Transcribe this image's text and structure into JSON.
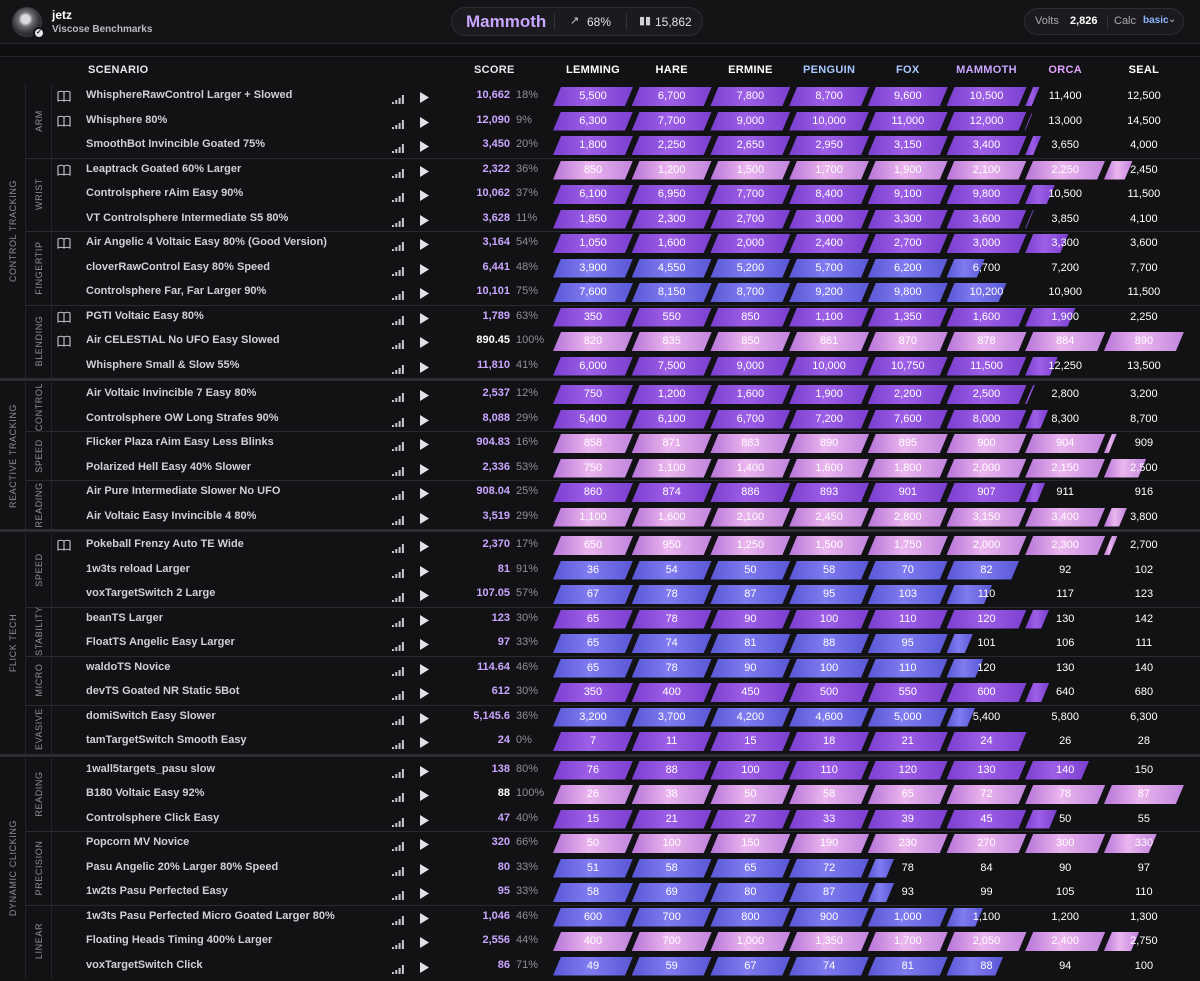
{
  "header": {
    "user_name": "jetz",
    "benchmark_name": "Viscose Benchmarks",
    "rank": {
      "name": "Mammoth",
      "percent": "68%",
      "count": "15,862",
      "trend_icon": "trending-up-icon",
      "count_icon": "bar-chart-icon"
    },
    "volts_label": "Volts",
    "volts_value": "2,826",
    "calc_label": "Calc",
    "calc_value": "basic"
  },
  "columns": {
    "scenario": "SCENARIO",
    "score": "SCORE",
    "ranks": [
      {
        "name": "LEMMING",
        "color": "#ffffff"
      },
      {
        "name": "HARE",
        "color": "#ffffff"
      },
      {
        "name": "ERMINE",
        "color": "#ffffff"
      },
      {
        "name": "PENGUIN",
        "color": "#a9c8ff"
      },
      {
        "name": "FOX",
        "color": "#a9c8ff"
      },
      {
        "name": "MAMMOTH",
        "color": "#c9a6ff"
      },
      {
        "name": "ORCA",
        "color": "#e0a3ff"
      },
      {
        "name": "SEAL",
        "color": "#ffffff"
      }
    ]
  },
  "colors": {
    "purple": "#9b5ce0",
    "violet": "#7c68e6",
    "pink": "#dba2e4",
    "score_purple": "#c9a6ff"
  },
  "categories": [
    {
      "name": "CONTROL TRACKING",
      "subcategories": [
        {
          "name": "ARM",
          "scenarios": [
            {
              "name": "WhisphereRawControl Larger + Slowed",
              "score": "10,662",
              "pct": "18%",
              "progress": 0.18,
              "color": "purple",
              "book": true,
              "thresholds": [
                "5,500",
                "6,700",
                "7,800",
                "8,700",
                "9,600",
                "10,500",
                "11,400",
                "12,500"
              ]
            },
            {
              "name": "Whisphere 80%",
              "score": "12,090",
              "pct": "9%",
              "progress": 0.09,
              "color": "purple",
              "book": true,
              "thresholds": [
                "6,300",
                "7,700",
                "9,000",
                "10,000",
                "11,000",
                "12,000",
                "13,000",
                "14,500"
              ]
            },
            {
              "name": "SmoothBot Invincible Goated 75%",
              "score": "3,450",
              "pct": "20%",
              "progress": 0.2,
              "color": "purple",
              "book": false,
              "thresholds": [
                "1,800",
                "2,250",
                "2,650",
                "2,950",
                "3,150",
                "3,400",
                "3,650",
                "4,000"
              ]
            }
          ]
        },
        {
          "name": "WRIST",
          "scenarios": [
            {
              "name": "Leaptrack Goated 60% Larger",
              "score": "2,322",
              "pct": "36%",
              "progress": 1.36,
              "color": "pink",
              "book": true,
              "thresholds": [
                "850",
                "1,200",
                "1,500",
                "1,700",
                "1,900",
                "2,100",
                "2,250",
                "2,450"
              ]
            },
            {
              "name": "Controlsphere rAim Easy 90%",
              "score": "10,062",
              "pct": "37%",
              "progress": 0.37,
              "color": "purple",
              "book": false,
              "thresholds": [
                "6,100",
                "6,950",
                "7,700",
                "8,400",
                "9,100",
                "9,800",
                "10,500",
                "11,500"
              ]
            },
            {
              "name": "VT Controlsphere Intermediate S5 80%",
              "score": "3,628",
              "pct": "11%",
              "progress": 0.11,
              "color": "purple",
              "book": false,
              "thresholds": [
                "1,850",
                "2,300",
                "2,700",
                "3,000",
                "3,300",
                "3,600",
                "3,850",
                "4,100"
              ]
            }
          ]
        },
        {
          "name": "FINGERTIP",
          "scenarios": [
            {
              "name": "Air Angelic 4 Voltaic Easy 80% (Good Version)",
              "score": "3,164",
              "pct": "54%",
              "progress": 0.54,
              "color": "purple",
              "book": true,
              "thresholds": [
                "1,050",
                "1,600",
                "2,000",
                "2,400",
                "2,700",
                "3,000",
                "3,300",
                "3,600"
              ]
            },
            {
              "name": "cloverRawControl Easy 80% Speed",
              "score": "6,441",
              "pct": "48%",
              "progress": -0.52,
              "color": "violet",
              "book": false,
              "thresholds": [
                "3,900",
                "4,550",
                "5,200",
                "5,700",
                "6,200",
                "6,700",
                "7,200",
                "7,700"
              ]
            },
            {
              "name": "Controlsphere Far, Far Larger 90%",
              "score": "10,101",
              "pct": "75%",
              "progress": -0.25,
              "color": "violet",
              "book": false,
              "thresholds": [
                "7,600",
                "8,150",
                "8,700",
                "9,200",
                "9,800",
                "10,200",
                "10,900",
                "11,500"
              ]
            }
          ]
        },
        {
          "name": "BLENDING",
          "scenarios": [
            {
              "name": "PGTI Voltaic Easy 80%",
              "score": "1,789",
              "pct": "63%",
              "progress": 0.63,
              "color": "purple",
              "book": true,
              "thresholds": [
                "350",
                "550",
                "850",
                "1,100",
                "1,350",
                "1,600",
                "1,900",
                "2,250"
              ]
            },
            {
              "name": "Air CELESTIAL No UFO Easy Slowed",
              "score": "890.45",
              "pct": "100%",
              "progress": 3,
              "color": "pink",
              "book": true,
              "thresholds": [
                "820",
                "835",
                "850",
                "861",
                "870",
                "878",
                "884",
                "890"
              ]
            },
            {
              "name": "Whisphere Small & Slow 55%",
              "score": "11,810",
              "pct": "41%",
              "progress": 0.41,
              "color": "purple",
              "book": false,
              "thresholds": [
                "6,000",
                "7,500",
                "9,000",
                "10,000",
                "10,750",
                "11,500",
                "12,250",
                "13,500"
              ]
            }
          ]
        }
      ]
    },
    {
      "name": "REACTIVE TRACKING",
      "subcategories": [
        {
          "name": "CONTROL",
          "scenarios": [
            {
              "name": "Air Voltaic Invincible 7 Easy 80%",
              "score": "2,537",
              "pct": "12%",
              "progress": 0.12,
              "color": "purple",
              "book": false,
              "thresholds": [
                "750",
                "1,200",
                "1,600",
                "1,900",
                "2,200",
                "2,500",
                "2,800",
                "3,200"
              ]
            },
            {
              "name": "Controlsphere OW Long Strafes 90%",
              "score": "8,088",
              "pct": "29%",
              "progress": 0.29,
              "color": "purple",
              "book": false,
              "thresholds": [
                "5,400",
                "6,100",
                "6,700",
                "7,200",
                "7,600",
                "8,000",
                "8,300",
                "8,700"
              ]
            }
          ]
        },
        {
          "name": "SPEED",
          "scenarios": [
            {
              "name": "Flicker Plaza rAim Easy Less Blinks",
              "score": "904.83",
              "pct": "16%",
              "progress": 1.16,
              "color": "pink",
              "book": false,
              "thresholds": [
                "858",
                "871",
                "883",
                "890",
                "895",
                "900",
                "904",
                "909"
              ]
            },
            {
              "name": "Polarized Hell Easy 40% Slower",
              "score": "2,336",
              "pct": "53%",
              "progress": 1.53,
              "color": "pink",
              "book": false,
              "thresholds": [
                "750",
                "1,100",
                "1,400",
                "1,600",
                "1,800",
                "2,000",
                "2,150",
                "2,500"
              ]
            }
          ]
        },
        {
          "name": "READING",
          "scenarios": [
            {
              "name": "Air Pure Intermediate Slower No UFO",
              "score": "908.04",
              "pct": "25%",
              "progress": 0.25,
              "color": "purple",
              "book": false,
              "thresholds": [
                "860",
                "874",
                "886",
                "893",
                "901",
                "907",
                "911",
                "916"
              ]
            },
            {
              "name": "Air Voltaic Easy Invincible 4 80%",
              "score": "3,519",
              "pct": "29%",
              "progress": 1.29,
              "color": "pink",
              "book": false,
              "thresholds": [
                "1,100",
                "1,600",
                "2,100",
                "2,450",
                "2,800",
                "3,150",
                "3,400",
                "3,800"
              ]
            }
          ]
        }
      ]
    },
    {
      "name": "FLICK TECH",
      "subcategories": [
        {
          "name": "SPEED",
          "scenarios": [
            {
              "name": "Pokeball Frenzy Auto TE Wide",
              "score": "2,370",
              "pct": "17%",
              "progress": 1.17,
              "color": "pink",
              "book": true,
              "thresholds": [
                "650",
                "950",
                "1,250",
                "1,500",
                "1,750",
                "2,000",
                "2,300",
                "2,700"
              ]
            },
            {
              "name": "1w3ts reload Larger",
              "score": "81",
              "pct": "91%",
              "progress": -0.09,
              "color": "violet",
              "book": false,
              "thresholds": [
                "36",
                "54",
                "50",
                "58",
                "70",
                "82",
                "92",
                "102"
              ]
            },
            {
              "name": "voxTargetSwitch 2 Large",
              "score": "107.05",
              "pct": "57%",
              "progress": -0.43,
              "color": "violet",
              "book": false,
              "thresholds": [
                "67",
                "78",
                "87",
                "95",
                "103",
                "110",
                "117",
                "123"
              ]
            }
          ]
        },
        {
          "name": "STABILITY",
          "scenarios": [
            {
              "name": "beanTS Larger",
              "score": "123",
              "pct": "30%",
              "progress": 0.3,
              "color": "purple",
              "book": false,
              "thresholds": [
                "65",
                "78",
                "90",
                "100",
                "110",
                "120",
                "130",
                "142"
              ]
            },
            {
              "name": "FloatTS Angelic Easy Larger",
              "score": "97",
              "pct": "33%",
              "progress": -0.67,
              "color": "violet",
              "book": false,
              "thresholds": [
                "65",
                "74",
                "81",
                "88",
                "95",
                "101",
                "106",
                "111"
              ]
            }
          ]
        },
        {
          "name": "MICRO",
          "scenarios": [
            {
              "name": "waldoTS Novice",
              "score": "114.64",
              "pct": "46%",
              "progress": -0.54,
              "color": "violet",
              "book": false,
              "thresholds": [
                "65",
                "78",
                "90",
                "100",
                "110",
                "120",
                "130",
                "140"
              ]
            },
            {
              "name": "devTS Goated NR Static 5Bot",
              "score": "612",
              "pct": "30%",
              "progress": 0.3,
              "color": "purple",
              "book": false,
              "thresholds": [
                "350",
                "400",
                "450",
                "500",
                "550",
                "600",
                "640",
                "680"
              ]
            }
          ]
        },
        {
          "name": "EVASIVE",
          "scenarios": [
            {
              "name": "domiSwitch Easy Slower",
              "score": "5,145.6",
              "pct": "36%",
              "progress": -0.64,
              "color": "violet",
              "book": false,
              "thresholds": [
                "3,200",
                "3,700",
                "4,200",
                "4,600",
                "5,000",
                "5,400",
                "5,800",
                "6,300"
              ]
            },
            {
              "name": "tamTargetSwitch Smooth Easy",
              "score": "24",
              "pct": "0%",
              "progress": 0.0,
              "color": "purple",
              "book": false,
              "thresholds": [
                "7",
                "11",
                "15",
                "18",
                "21",
                "24",
                "26",
                "28"
              ]
            }
          ]
        }
      ]
    },
    {
      "name": "DYNAMIC CLICKING",
      "subcategories": [
        {
          "name": "READING",
          "scenarios": [
            {
              "name": "1wall5targets_pasu slow",
              "score": "138",
              "pct": "80%",
              "progress": 0.8,
              "color": "purple",
              "book": false,
              "thresholds": [
                "76",
                "88",
                "100",
                "110",
                "120",
                "130",
                "140",
                "150"
              ]
            },
            {
              "name": "B180 Voltaic Easy 92%",
              "score": "88",
              "pct": "100%",
              "progress": 2.0,
              "color": "pink",
              "book": false,
              "thresholds": [
                "26",
                "38",
                "50",
                "58",
                "65",
                "72",
                "78",
                "87"
              ]
            },
            {
              "name": "Controlsphere Click Easy",
              "score": "47",
              "pct": "40%",
              "progress": 0.4,
              "color": "purple",
              "book": false,
              "thresholds": [
                "15",
                "21",
                "27",
                "33",
                "39",
                "45",
                "50",
                "55"
              ]
            }
          ]
        },
        {
          "name": "PRECISION",
          "scenarios": [
            {
              "name": "Popcorn MV Novice",
              "score": "320",
              "pct": "66%",
              "progress": 1.66,
              "color": "pink",
              "book": false,
              "thresholds": [
                "50",
                "100",
                "150",
                "190",
                "230",
                "270",
                "300",
                "330"
              ]
            },
            {
              "name": "Pasu Angelic 20% Larger 80% Speed",
              "score": "80",
              "pct": "33%",
              "progress": -1.67,
              "color": "violet",
              "book": false,
              "thresholds": [
                "51",
                "58",
                "65",
                "72",
                "78",
                "84",
                "90",
                "97"
              ]
            },
            {
              "name": "1w2ts Pasu Perfected Easy",
              "score": "95",
              "pct": "33%",
              "progress": -1.67,
              "color": "violet",
              "book": false,
              "thresholds": [
                "58",
                "69",
                "80",
                "87",
                "93",
                "99",
                "105",
                "110"
              ]
            }
          ]
        },
        {
          "name": "LINEAR",
          "scenarios": [
            {
              "name": "1w3ts Pasu Perfected Micro Goated Larger 80%",
              "score": "1,046",
              "pct": "46%",
              "progress": -0.54,
              "color": "violet",
              "book": false,
              "thresholds": [
                "600",
                "700",
                "800",
                "900",
                "1,000",
                "1,100",
                "1,200",
                "1,300"
              ]
            },
            {
              "name": "Floating Heads Timing 400% Larger",
              "score": "2,556",
              "pct": "44%",
              "progress": 1.44,
              "color": "pink",
              "book": false,
              "thresholds": [
                "400",
                "700",
                "1,000",
                "1,350",
                "1,700",
                "2,050",
                "2,400",
                "2,750"
              ]
            },
            {
              "name": "voxTargetSwitch Click",
              "score": "86",
              "pct": "71%",
              "progress": -0.29,
              "color": "violet",
              "book": false,
              "thresholds": [
                "49",
                "59",
                "67",
                "74",
                "81",
                "88",
                "94",
                "100"
              ]
            }
          ]
        }
      ]
    }
  ]
}
